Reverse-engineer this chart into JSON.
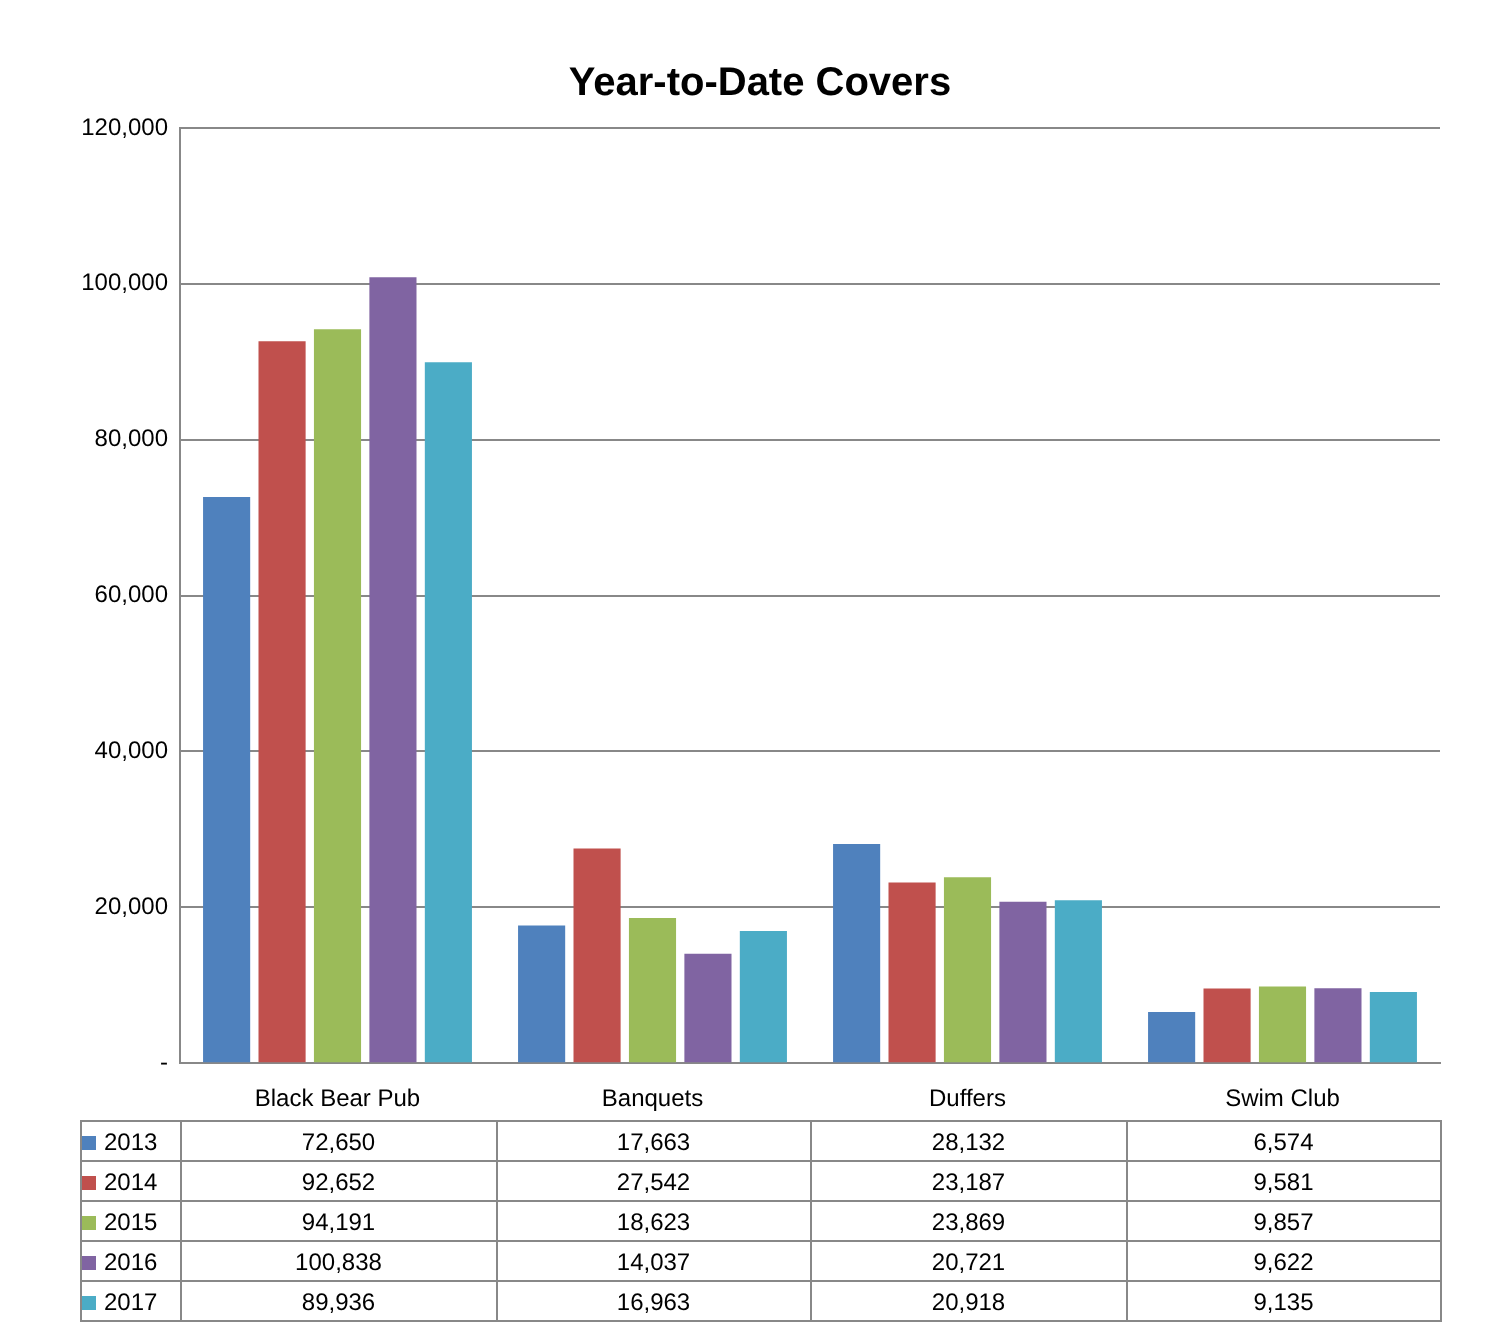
{
  "chart_data": {
    "type": "bar",
    "title": "Year-to-Date Covers",
    "categories": [
      "Black Bear Pub",
      "Banquets",
      "Duffers",
      "Swim Club"
    ],
    "series": [
      {
        "name": "2013",
        "color": "#4f81bd",
        "values": [
          72650,
          17663,
          28132,
          6574
        ],
        "value_labels": [
          "72,650",
          "17,663",
          "28,132",
          "6,574"
        ]
      },
      {
        "name": "2014",
        "color": "#c0504d",
        "values": [
          92652,
          27542,
          23187,
          9581
        ],
        "value_labels": [
          "92,652",
          "27,542",
          "23,187",
          "9,581"
        ]
      },
      {
        "name": "2015",
        "color": "#9bbb59",
        "values": [
          94191,
          18623,
          23869,
          9857
        ],
        "value_labels": [
          "94,191",
          "18,623",
          "23,869",
          "9,857"
        ]
      },
      {
        "name": "2016",
        "color": "#8064a2",
        "values": [
          100838,
          14037,
          20721,
          9622
        ],
        "value_labels": [
          "100,838",
          "14,037",
          "20,721",
          "9,622"
        ]
      },
      {
        "name": "2017",
        "color": "#4bacc6",
        "values": [
          89936,
          16963,
          20918,
          9135
        ],
        "value_labels": [
          "89,936",
          "16,963",
          "20,918",
          "9,135"
        ]
      }
    ],
    "ylim": [
      0,
      120000
    ],
    "yticks": [
      {
        "value": 0,
        "label": "-"
      },
      {
        "value": 20000,
        "label": "20,000"
      },
      {
        "value": 40000,
        "label": "40,000"
      },
      {
        "value": 60000,
        "label": "60,000"
      },
      {
        "value": 80000,
        "label": "80,000"
      },
      {
        "value": 100000,
        "label": "100,000"
      },
      {
        "value": 120000,
        "label": "120,000"
      }
    ],
    "grid": "y",
    "legend": "bottom"
  }
}
